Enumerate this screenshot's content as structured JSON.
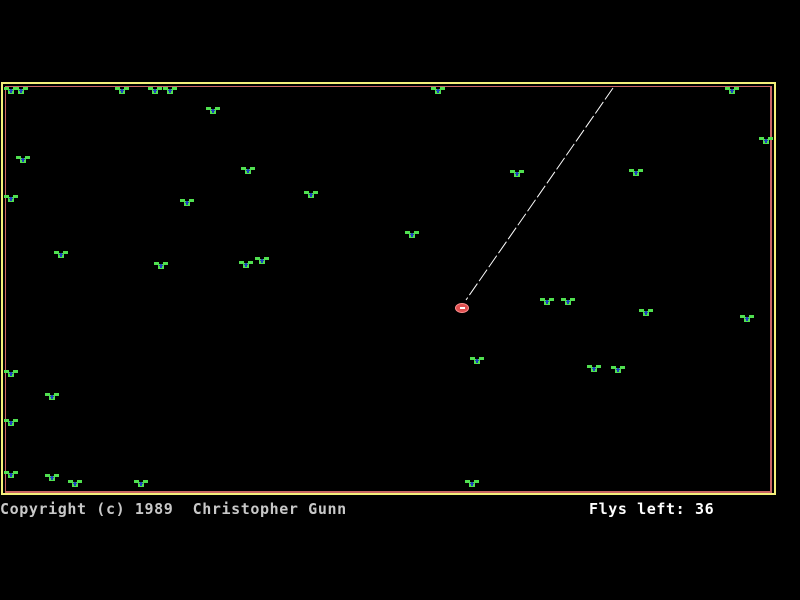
{
  "game": {
    "copyright": "Copyright (c) 1989  Christopher Gunn",
    "flys_left_label": "Flys left:",
    "flys_left": "36"
  },
  "colors": {
    "border_outer": "#f4f07a",
    "border_inner": "#c86464",
    "fly": "#50e050",
    "fly_body": "#2040c0",
    "spider": "#e05050",
    "web": "#ffffff"
  }
}
